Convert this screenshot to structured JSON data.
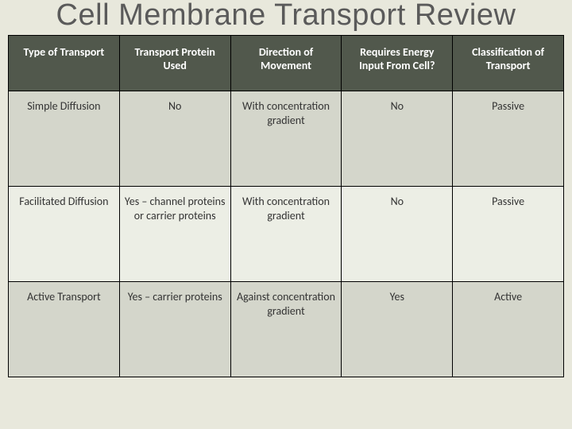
{
  "title": "Cell Membrane Transport Review",
  "table": {
    "type": "table",
    "columns": [
      "Type of Transport",
      "Transport Protein Used",
      "Direction of Movement",
      "Requires Energy Input From Cell?",
      "Classification of Transport"
    ],
    "rows": [
      [
        "Simple Diffusion",
        "No",
        "With concentration gradient",
        "No",
        "Passive"
      ],
      [
        "Facilitated Diffusion",
        "Yes – channel proteins or carrier proteins",
        "With concentration gradient",
        "No",
        "Passive"
      ],
      [
        "Active Transport",
        "Yes – carrier proteins",
        "Against concentration gradient",
        "Yes",
        "Active"
      ]
    ],
    "header_bg": "#51584c",
    "header_text_color": "#ffffff",
    "row_bg_odd": "#d4d6cb",
    "row_bg_even": "#eceee5",
    "border_color": "#000000",
    "body_bg": "#e8e8dc",
    "title_color": "#5a5a5a",
    "title_fontsize": 38,
    "header_fontsize": 14,
    "cell_fontsize": 14
  }
}
